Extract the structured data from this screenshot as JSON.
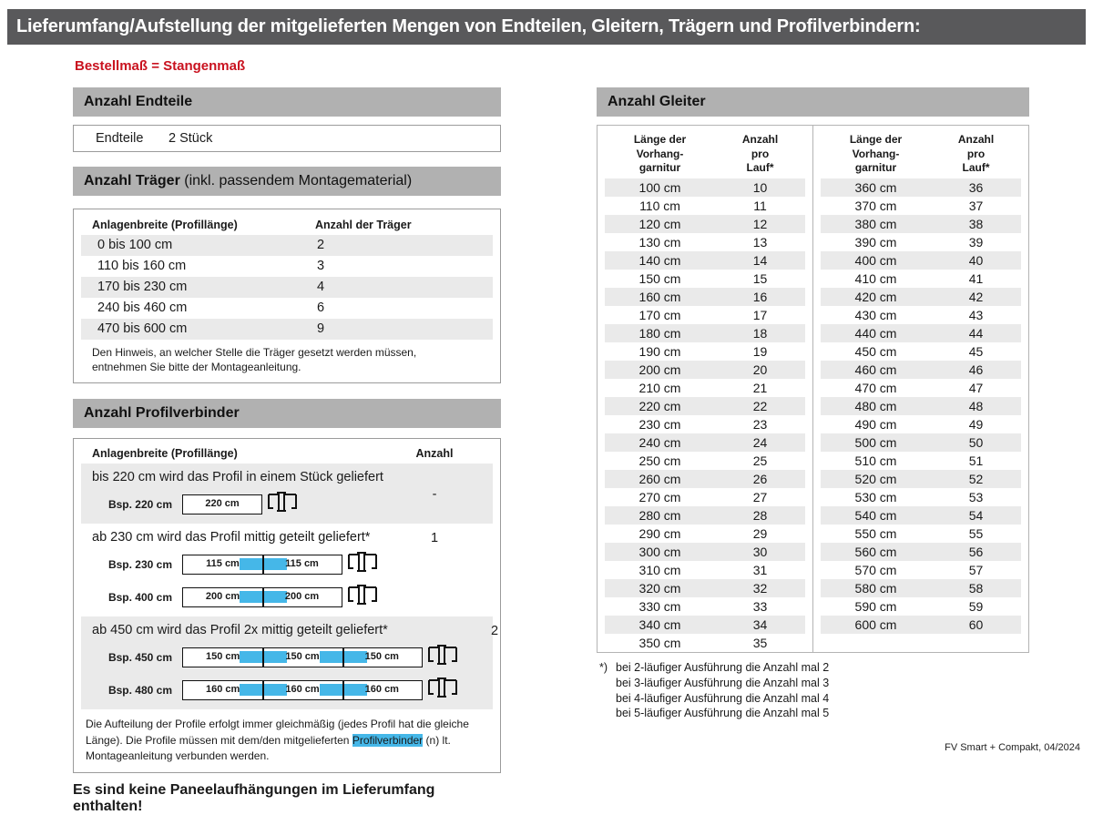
{
  "page_title": "Lieferumfang/Aufstellung der mitgelieferten Mengen von Endteilen, Gleitern, Trägern und Profilverbindern:",
  "subtitle": "Bestellmaß = Stangenmaß",
  "colors": {
    "dark_bar": "#59595b",
    "section_bar": "#b1b1b1",
    "stripe": "#eaeaea",
    "accent_blue": "#45b7e8",
    "red": "#c9121f"
  },
  "endteile": {
    "header": "Anzahl Endteile",
    "label": "Endteile",
    "value": "2 Stück"
  },
  "traeger": {
    "header_bold": "Anzahl Träger",
    "header_rest": " (inkl. passendem Montagematerial)",
    "col1": "Anlagenbreite (Profillänge)",
    "col2": "Anzahl der Träger",
    "rows": [
      {
        "breite": "0 bis 100 cm",
        "anzahl": "2"
      },
      {
        "breite": "110 bis 160 cm",
        "anzahl": "3"
      },
      {
        "breite": "170 bis 230 cm",
        "anzahl": "4"
      },
      {
        "breite": "240 bis 460 cm",
        "anzahl": "6"
      },
      {
        "breite": "470 bis 600 cm",
        "anzahl": "9"
      }
    ],
    "note": "Den Hinweis, an welcher Stelle die Träger gesetzt werden müssen, entnehmen Sie bitte der Montageanleitung."
  },
  "profilverbinder": {
    "header": "Anzahl Profilverbinder",
    "col1": "Anlagenbreite (Profillänge)",
    "col2": "Anzahl",
    "groups": [
      {
        "text": "bis 220 cm wird das Profil in einem Stück geliefert",
        "anzahl": "-",
        "diagrams": [
          {
            "label": "Bsp. 220 cm",
            "segments": [
              "220 cm"
            ]
          }
        ]
      },
      {
        "text": "ab 230 cm wird das Profil mittig geteilt geliefert*",
        "anzahl": "1",
        "diagrams": [
          {
            "label": "Bsp. 230 cm",
            "segments": [
              "115 cm",
              "115 cm"
            ]
          },
          {
            "label": "Bsp. 400 cm",
            "segments": [
              "200 cm",
              "200 cm"
            ]
          }
        ]
      },
      {
        "text": "ab 450 cm wird das Profil 2x mittig geteilt geliefert*",
        "anzahl": "2",
        "diagrams": [
          {
            "label": "Bsp. 450 cm",
            "segments": [
              "150 cm",
              "150 cm",
              "150 cm"
            ]
          },
          {
            "label": "Bsp. 480 cm",
            "segments": [
              "160 cm",
              "160 cm",
              "160 cm"
            ]
          }
        ]
      }
    ],
    "note_before": "Die Aufteilung der Profile erfolgt immer gleichmäßig (jedes Profil hat die gleiche Länge). Die Profile müssen mit dem/den mitgelieferten ",
    "note_highlight": "Profilverbinder",
    "note_after": " (n) lt. Montageanleitung verbunden werden."
  },
  "no_paneel_note": "Es sind keine Paneelaufhängungen im Lieferumfang enthalten!",
  "gleiter": {
    "header": "Anzahl Gleiter",
    "col1_lines": [
      "Länge der",
      "Vorhang-",
      "garnitur"
    ],
    "col2_lines": [
      "Anzahl",
      "pro",
      "Lauf*"
    ],
    "left_rows": [
      {
        "laenge": "100 cm",
        "anzahl": "10"
      },
      {
        "laenge": "110 cm",
        "anzahl": "11"
      },
      {
        "laenge": "120 cm",
        "anzahl": "12"
      },
      {
        "laenge": "130 cm",
        "anzahl": "13"
      },
      {
        "laenge": "140 cm",
        "anzahl": "14"
      },
      {
        "laenge": "150 cm",
        "anzahl": "15"
      },
      {
        "laenge": "160 cm",
        "anzahl": "16"
      },
      {
        "laenge": "170 cm",
        "anzahl": "17"
      },
      {
        "laenge": "180 cm",
        "anzahl": "18"
      },
      {
        "laenge": "190 cm",
        "anzahl": "19"
      },
      {
        "laenge": "200 cm",
        "anzahl": "20"
      },
      {
        "laenge": "210 cm",
        "anzahl": "21"
      },
      {
        "laenge": "220 cm",
        "anzahl": "22"
      },
      {
        "laenge": "230 cm",
        "anzahl": "23"
      },
      {
        "laenge": "240 cm",
        "anzahl": "24"
      },
      {
        "laenge": "250 cm",
        "anzahl": "25"
      },
      {
        "laenge": "260 cm",
        "anzahl": "26"
      },
      {
        "laenge": "270 cm",
        "anzahl": "27"
      },
      {
        "laenge": "280 cm",
        "anzahl": "28"
      },
      {
        "laenge": "290 cm",
        "anzahl": "29"
      },
      {
        "laenge": "300 cm",
        "anzahl": "30"
      },
      {
        "laenge": "310 cm",
        "anzahl": "31"
      },
      {
        "laenge": "320 cm",
        "anzahl": "32"
      },
      {
        "laenge": "330 cm",
        "anzahl": "33"
      },
      {
        "laenge": "340 cm",
        "anzahl": "34"
      },
      {
        "laenge": "350 cm",
        "anzahl": "35"
      }
    ],
    "right_rows": [
      {
        "laenge": "360 cm",
        "anzahl": "36"
      },
      {
        "laenge": "370 cm",
        "anzahl": "37"
      },
      {
        "laenge": "380 cm",
        "anzahl": "38"
      },
      {
        "laenge": "390 cm",
        "anzahl": "39"
      },
      {
        "laenge": "400 cm",
        "anzahl": "40"
      },
      {
        "laenge": "410 cm",
        "anzahl": "41"
      },
      {
        "laenge": "420 cm",
        "anzahl": "42"
      },
      {
        "laenge": "430 cm",
        "anzahl": "43"
      },
      {
        "laenge": "440 cm",
        "anzahl": "44"
      },
      {
        "laenge": "450 cm",
        "anzahl": "45"
      },
      {
        "laenge": "460 cm",
        "anzahl": "46"
      },
      {
        "laenge": "470 cm",
        "anzahl": "47"
      },
      {
        "laenge": "480 cm",
        "anzahl": "48"
      },
      {
        "laenge": "490 cm",
        "anzahl": "49"
      },
      {
        "laenge": "500 cm",
        "anzahl": "50"
      },
      {
        "laenge": "510 cm",
        "anzahl": "51"
      },
      {
        "laenge": "520 cm",
        "anzahl": "52"
      },
      {
        "laenge": "530 cm",
        "anzahl": "53"
      },
      {
        "laenge": "540 cm",
        "anzahl": "54"
      },
      {
        "laenge": "550 cm",
        "anzahl": "55"
      },
      {
        "laenge": "560 cm",
        "anzahl": "56"
      },
      {
        "laenge": "570 cm",
        "anzahl": "57"
      },
      {
        "laenge": "580 cm",
        "anzahl": "58"
      },
      {
        "laenge": "590 cm",
        "anzahl": "59"
      },
      {
        "laenge": "600 cm",
        "anzahl": "60"
      }
    ]
  },
  "footnote": {
    "marker": "*)",
    "lines": [
      "bei 2-läufiger Ausführung die Anzahl mal 2",
      "bei 3-läufiger Ausführung die Anzahl mal 3",
      "bei 4-läufiger Ausführung die Anzahl mal 4",
      "bei 5-läufiger Ausführung die Anzahl mal 5"
    ]
  },
  "footer": "FV Smart + Compakt, 04/2024"
}
